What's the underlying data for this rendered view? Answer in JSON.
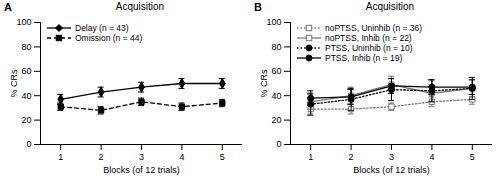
{
  "chart_data": [
    {
      "type": "line",
      "title": "Acquisition",
      "annotations": [
        "A"
      ],
      "x_label": "Blocks (of 12 trials)",
      "y_label": "% CRs",
      "x": [
        1,
        2,
        3,
        4,
        5
      ],
      "xlim": [
        0.5,
        5.5
      ],
      "xticks": [
        1,
        2,
        3,
        4,
        5
      ],
      "ylim": [
        0,
        100
      ],
      "yticks": [
        0,
        20,
        40,
        60,
        80,
        100
      ],
      "legend": "top-left",
      "series": [
        {
          "name": "Delay (n = 43)",
          "color": "#000000",
          "marker": "diamond",
          "line_style": "solid",
          "values": [
            37,
            43,
            47,
            50,
            50
          ],
          "errors": [
            4,
            4,
            4,
            4,
            4
          ]
        },
        {
          "name": "Omission (n = 44)",
          "color": "#000000",
          "marker": "square",
          "line_style": "dashed",
          "values": [
            31,
            28,
            35,
            31,
            34
          ],
          "errors": [
            3,
            3,
            3,
            3,
            3
          ]
        }
      ]
    },
    {
      "type": "line",
      "title": "Acquisition",
      "annotations": [
        "B"
      ],
      "x_label": "Blocks (of 12 trials)",
      "y_label": "% CRs",
      "x": [
        1,
        2,
        3,
        4,
        5
      ],
      "xlim": [
        0.5,
        5.5
      ],
      "xticks": [
        1,
        2,
        3,
        4,
        5
      ],
      "ylim": [
        0,
        100
      ],
      "yticks": [
        0,
        20,
        40,
        60,
        80,
        100
      ],
      "legend": "top-left",
      "series": [
        {
          "name": "noPTSS, Uninhib (n = 36)",
          "color": "#777777",
          "marker": "square-open",
          "line_style": "dotted",
          "values": [
            29,
            29,
            31,
            35,
            37
          ],
          "errors": [
            4,
            4,
            3,
            4,
            4
          ]
        },
        {
          "name": "noPTSS, Inhib (n = 22)",
          "color": "#777777",
          "marker": "square-open",
          "line_style": "solid",
          "values": [
            35,
            40,
            49,
            42,
            46
          ],
          "errors": [
            6,
            7,
            7,
            7,
            7
          ]
        },
        {
          "name": "PTSS, Uninhib (n = 10)",
          "color": "#000000",
          "marker": "circle",
          "line_style": "dotted",
          "values": [
            33,
            37,
            45,
            44,
            46
          ],
          "errors": [
            9,
            9,
            9,
            9,
            9
          ]
        },
        {
          "name": "PTSS, Inhib (n = 19)",
          "color": "#000000",
          "marker": "circle",
          "line_style": "solid",
          "values": [
            38,
            39,
            48,
            47,
            47
          ],
          "errors": [
            6,
            6,
            6,
            6,
            6
          ]
        }
      ]
    }
  ]
}
